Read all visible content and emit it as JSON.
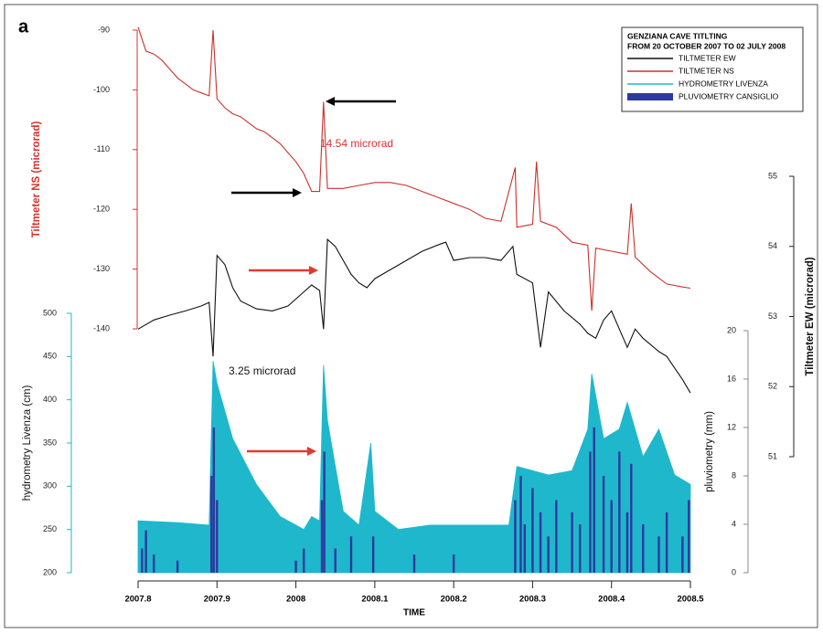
{
  "chart_data": {
    "type": "line",
    "panel_label": "a",
    "legend_title": [
      "GENZIANA CAVE TITLTING",
      "FROM 20 OCTOBER 2007 TO 02 JULY 2008"
    ],
    "xlabel": "TIME",
    "xlim": [
      2007.8,
      2008.5
    ],
    "xticks": [
      2007.8,
      2007.9,
      2008,
      2008.1,
      2008.2,
      2008.3,
      2008.4,
      2008.5
    ],
    "ylabel": "Tiltmeter NS (microrad)",
    "ylim": [
      -140,
      -90
    ],
    "yticks": [
      -140,
      -130,
      -120,
      -110,
      -100,
      -90
    ],
    "y2label": "Tiltmeter EW (microrad)",
    "y2lim": [
      51,
      55
    ],
    "y2ticks": [
      51,
      52,
      53,
      54,
      55
    ],
    "y3label": "hydrometry Livenza (cm)",
    "y3lim": [
      200,
      500
    ],
    "y3ticks": [
      200,
      250,
      300,
      350,
      400,
      450,
      500
    ],
    "y4label": "pluviometry (mm)",
    "y4lim": [
      0,
      20
    ],
    "y4ticks": [
      0,
      4,
      8,
      12,
      16,
      20
    ],
    "annotations": [
      "14.54 microrad",
      "3.25 microrad"
    ],
    "series": [
      {
        "name": "TILTMETER EW",
        "color": "#111111",
        "type": "line",
        "axis": "y2",
        "x": [
          2007.8,
          2007.82,
          2007.84,
          2007.86,
          2007.88,
          2007.89,
          2007.895,
          2007.9,
          2007.91,
          2007.92,
          2007.93,
          2007.95,
          2007.97,
          2007.99,
          2008.01,
          2008.02,
          2008.03,
          2008.035,
          2008.04,
          2008.05,
          2008.07,
          2008.08,
          2008.09,
          2008.1,
          2008.12,
          2008.14,
          2008.16,
          2008.18,
          2008.19,
          2008.2,
          2008.22,
          2008.24,
          2008.26,
          2008.275,
          2008.28,
          2008.3,
          2008.31,
          2008.32,
          2008.34,
          2008.36,
          2008.37,
          2008.38,
          2008.39,
          2008.4,
          2008.41,
          2008.42,
          2008.43,
          2008.44,
          2008.46,
          2008.47,
          2008.49,
          2008.5
        ],
        "values": [
          52.82,
          52.95,
          53.02,
          53.08,
          53.15,
          53.2,
          52.43,
          53.87,
          53.74,
          53.41,
          53.22,
          53.11,
          53.08,
          53.15,
          53.35,
          53.45,
          53.37,
          52.82,
          54.1,
          54.0,
          53.6,
          53.48,
          53.41,
          53.54,
          53.67,
          53.8,
          53.93,
          54.02,
          54.06,
          53.8,
          53.84,
          53.84,
          53.8,
          54.0,
          53.6,
          53.48,
          52.56,
          53.35,
          53.08,
          52.89,
          52.76,
          52.69,
          52.95,
          53.08,
          52.82,
          52.56,
          52.82,
          52.69,
          52.5,
          52.43,
          52.1,
          51.91
        ]
      },
      {
        "name": "TILTMETER NS",
        "color": "#c8322c",
        "type": "line",
        "axis": "y",
        "x": [
          2007.8,
          2007.81,
          2007.82,
          2007.83,
          2007.84,
          2007.85,
          2007.86,
          2007.87,
          2007.88,
          2007.89,
          2007.895,
          2007.9,
          2007.91,
          2007.92,
          2007.93,
          2007.94,
          2007.95,
          2007.96,
          2007.97,
          2007.98,
          2007.99,
          2008.0,
          2008.01,
          2008.02,
          2008.03,
          2008.035,
          2008.04,
          2008.06,
          2008.08,
          2008.1,
          2008.12,
          2008.14,
          2008.16,
          2008.18,
          2008.2,
          2008.22,
          2008.24,
          2008.26,
          2008.278,
          2008.28,
          2008.3,
          2008.305,
          2008.31,
          2008.33,
          2008.35,
          2008.37,
          2008.375,
          2008.38,
          2008.4,
          2008.42,
          2008.425,
          2008.43,
          2008.45,
          2008.47,
          2008.49,
          2008.5
        ],
        "values": [
          -89.5,
          -93.5,
          -94,
          -95,
          -96.5,
          -98,
          -99,
          -100,
          -100.5,
          -101,
          -90,
          -101.5,
          -103,
          -104,
          -104.5,
          -105.5,
          -106.5,
          -107,
          -108,
          -109,
          -110.5,
          -112,
          -114,
          -117,
          -117,
          -102,
          -116.5,
          -116.5,
          -116,
          -115.5,
          -115.5,
          -116,
          -117,
          -118,
          -119,
          -120,
          -121.5,
          -122,
          -113,
          -123,
          -122.5,
          -112,
          -122,
          -123,
          -125.5,
          -126,
          -137,
          -126.5,
          -127,
          -127.5,
          -119,
          -128,
          -130.5,
          -132.5,
          -133,
          -133.2
        ]
      },
      {
        "name": "HYDROMETRY LIVENZA",
        "color": "#1fb7cc",
        "type": "area",
        "axis": "y3",
        "x": [
          2007.8,
          2007.85,
          2007.89,
          2007.895,
          2007.9,
          2007.92,
          2007.95,
          2007.98,
          2008.0,
          2008.01,
          2008.02,
          2008.03,
          2008.035,
          2008.04,
          2008.05,
          2008.06,
          2008.08,
          2008.095,
          2008.1,
          2008.13,
          2008.17,
          2008.2,
          2008.24,
          2008.27,
          2008.28,
          2008.3,
          2008.32,
          2008.35,
          2008.37,
          2008.375,
          2008.39,
          2008.41,
          2008.42,
          2008.44,
          2008.46,
          2008.48,
          2008.5
        ],
        "values": [
          260,
          258,
          255,
          445,
          419,
          355,
          302,
          265,
          255,
          250,
          265,
          260,
          440,
          376,
          323,
          271,
          255,
          350,
          271,
          250,
          255,
          255,
          255,
          255,
          323,
          318,
          313,
          318,
          366,
          430,
          355,
          366,
          397,
          334,
          366,
          313,
          302
        ]
      },
      {
        "name": "PLUVIOMETRY CANSIGLIO",
        "color": "#2b3a9e",
        "type": "bar",
        "axis": "y4",
        "x": [
          2007.805,
          2007.81,
          2007.82,
          2007.85,
          2007.893,
          2007.896,
          2007.9,
          2008.0,
          2008.01,
          2008.033,
          2008.036,
          2008.05,
          2008.07,
          2008.098,
          2008.15,
          2008.2,
          2008.278,
          2008.285,
          2008.29,
          2008.3,
          2008.31,
          2008.32,
          2008.33,
          2008.35,
          2008.36,
          2008.373,
          2008.378,
          2008.39,
          2008.4,
          2008.41,
          2008.42,
          2008.425,
          2008.44,
          2008.46,
          2008.47,
          2008.49,
          2008.498
        ],
        "values": [
          2,
          3.5,
          1.5,
          1,
          8,
          12,
          6,
          1,
          2,
          6,
          10,
          2,
          3,
          3,
          1.5,
          1.5,
          6,
          8,
          4,
          7,
          5,
          3,
          6,
          5,
          4,
          10,
          12,
          8,
          6,
          10,
          5,
          9,
          4,
          3,
          5,
          3,
          6
        ]
      }
    ]
  }
}
